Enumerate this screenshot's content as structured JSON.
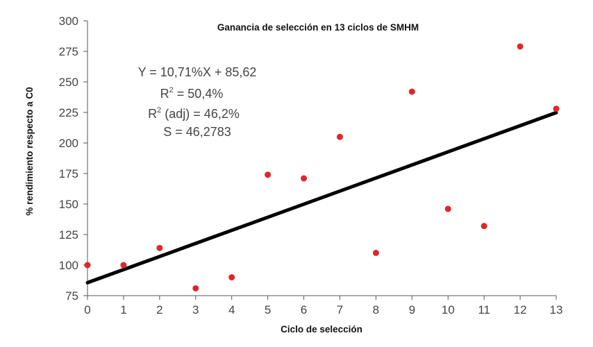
{
  "chart_data": {
    "type": "scatter",
    "title": "Ganancia de selección en 13 ciclos de  SMHM",
    "xlabel": "Ciclo de selección",
    "ylabel": "% rendimiento respecto a C0",
    "xlim": [
      0,
      13
    ],
    "ylim": [
      75,
      300
    ],
    "x_ticks": [
      "0",
      "1",
      "2",
      "3",
      "4",
      "5",
      "6",
      "7",
      "8",
      "9",
      "10",
      "11",
      "12",
      "13"
    ],
    "y_ticks": [
      "75",
      "100",
      "125",
      "150",
      "175",
      "200",
      "225",
      "250",
      "275",
      "300"
    ],
    "grid": false,
    "points": [
      {
        "x": 0,
        "y": 100
      },
      {
        "x": 1,
        "y": 100
      },
      {
        "x": 2,
        "y": 114
      },
      {
        "x": 3,
        "y": 81
      },
      {
        "x": 4,
        "y": 90
      },
      {
        "x": 5,
        "y": 174
      },
      {
        "x": 6,
        "y": 171
      },
      {
        "x": 7,
        "y": 205
      },
      {
        "x": 8,
        "y": 110
      },
      {
        "x": 9,
        "y": 242
      },
      {
        "x": 10,
        "y": 146
      },
      {
        "x": 11,
        "y": 132
      },
      {
        "x": 12,
        "y": 279
      },
      {
        "x": 13,
        "y": 228
      }
    ],
    "point_color": "#e0262c",
    "regression_line": {
      "intercept": 85.62,
      "slope": 10.71,
      "color": "#000000"
    },
    "annotation": {
      "eq": "Y = 10,71%X + 85,62",
      "r2_prefix": "R",
      "r2_sup": "2",
      "r2_rest": " = 50,4%",
      "r2adj_prefix": "R",
      "r2adj_sup": "2",
      "r2adj_rest": " (adj) = 46,2%",
      "s": "S = 46,2783"
    }
  }
}
